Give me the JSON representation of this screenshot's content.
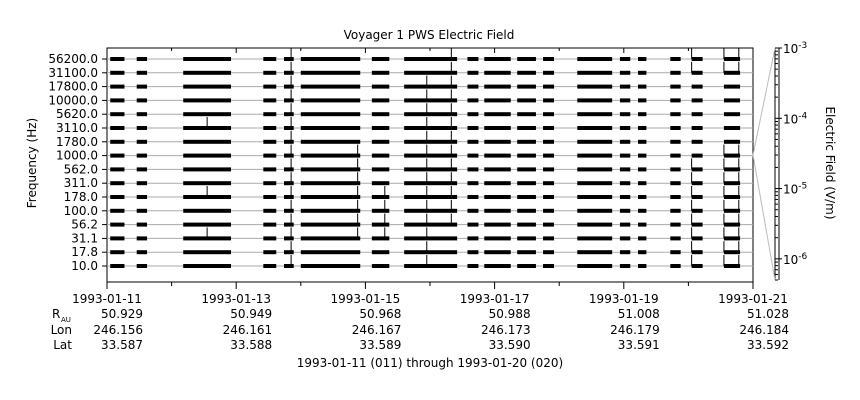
{
  "chart_data": {
    "type": "line",
    "title": "Voyager 1 PWS Electric Field",
    "ylabel": "Frequency (Hz)",
    "y2label": "Electric Field (V/m)",
    "xlabel": "1993-01-11 (011) through 1993-01-20 (020)",
    "x_range": [
      "1993-01-11",
      "1993-01-21"
    ],
    "x_ticks": [
      "1993-01-11",
      "1993-01-13",
      "1993-01-15",
      "1993-01-17",
      "1993-01-19",
      "1993-01-21"
    ],
    "channels": [
      "10.0",
      "17.8",
      "31.1",
      "56.2",
      "100.0",
      "178.0",
      "311.0",
      "562.0",
      "1000.0",
      "1780.0",
      "3110.0",
      "5620.0",
      "10000.0",
      "17800.0",
      "31100.0",
      "56200.0"
    ],
    "y2_ticks": [
      {
        "mantissa": "10",
        "exp": "-6",
        "value": 1e-06
      },
      {
        "mantissa": "10",
        "exp": "-5",
        "value": 1e-05
      },
      {
        "mantissa": "10",
        "exp": "-4",
        "value": 0.0001
      },
      {
        "mantissa": "10",
        "exp": "-3",
        "value": 0.001
      }
    ],
    "y2_range": [
      5e-07,
      0.001
    ],
    "y2_scale": "log",
    "ephemeris": {
      "labels": {
        "r": "R",
        "r_sub": "AU",
        "lon": "Lon",
        "lat": "Lat"
      },
      "rows": [
        {
          "r": "50.929",
          "lon": "246.156",
          "lat": "33.587"
        },
        {
          "r": "50.949",
          "lon": "246.161",
          "lat": "33.588"
        },
        {
          "r": "50.968",
          "lon": "246.167",
          "lat": "33.589"
        },
        {
          "r": "50.988",
          "lon": "246.173",
          "lat": "33.590"
        },
        {
          "r": "51.008",
          "lon": "246.179",
          "lat": "33.591"
        },
        {
          "r": "51.028",
          "lon": "246.184",
          "lat": "33.592"
        }
      ]
    },
    "data_segments_days": [
      [
        0.05,
        0.27
      ],
      [
        0.46,
        0.62
      ],
      [
        1.18,
        1.92
      ],
      [
        2.42,
        2.62
      ],
      [
        2.74,
        2.89
      ],
      [
        3.0,
        3.92
      ],
      [
        4.1,
        4.37
      ],
      [
        4.6,
        5.42
      ],
      [
        5.58,
        5.75
      ],
      [
        5.84,
        6.25
      ],
      [
        6.35,
        6.64
      ],
      [
        6.75,
        6.92
      ],
      [
        7.28,
        7.82
      ],
      [
        7.94,
        8.1
      ],
      [
        8.22,
        8.35
      ],
      [
        8.72,
        8.88
      ],
      [
        9.05,
        9.22
      ],
      [
        9.55,
        9.8
      ]
    ],
    "spikes": [
      {
        "day": 2.85,
        "channels": [
          0,
          1,
          2,
          3,
          4,
          5,
          6,
          7,
          8,
          9,
          10,
          11,
          12,
          13,
          14,
          15
        ]
      },
      {
        "day": 4.95,
        "channels": [
          0,
          1,
          2,
          3,
          4,
          5,
          6,
          7,
          8,
          9,
          10,
          11,
          12,
          13
        ]
      },
      {
        "day": 5.33,
        "channels": [
          3,
          4,
          5,
          6,
          7,
          8,
          9,
          10,
          11,
          12,
          13,
          14,
          15
        ]
      },
      {
        "day": 9.05,
        "channels": [
          0,
          1,
          2,
          3,
          4,
          5,
          6,
          7,
          14,
          15
        ]
      },
      {
        "day": 9.55,
        "channels": [
          0,
          1,
          2,
          3,
          4,
          5,
          6,
          7,
          8,
          14,
          15
        ]
      },
      {
        "day": 9.78,
        "channels": [
          0,
          1,
          2,
          3,
          4,
          5,
          6,
          7,
          8,
          14,
          15
        ]
      },
      {
        "day": 3.88,
        "channels": [
          2,
          3,
          4,
          5,
          6,
          7,
          8
        ]
      },
      {
        "day": 1.55,
        "channels": [
          2,
          5,
          10
        ]
      },
      {
        "day": 4.3,
        "channels": [
          2,
          3,
          4,
          5
        ]
      }
    ]
  }
}
